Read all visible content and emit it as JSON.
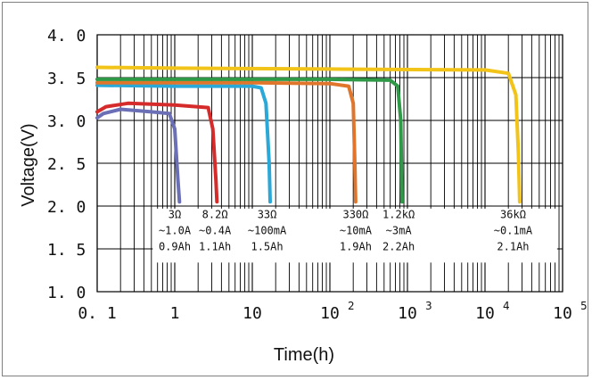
{
  "chart_data": {
    "type": "line",
    "title": "",
    "xlabel": "Time(h)",
    "ylabel": "Voltage(V)",
    "x_scale": "log",
    "xlim": [
      0.1,
      100000
    ],
    "ylim": [
      1.0,
      4.0
    ],
    "x_ticks": [
      {
        "value": 0.1,
        "base": "0. 1",
        "exp": ""
      },
      {
        "value": 1,
        "base": "1",
        "exp": ""
      },
      {
        "value": 10,
        "base": "10",
        "exp": ""
      },
      {
        "value": 100,
        "base": "10",
        "exp": "2"
      },
      {
        "value": 1000,
        "base": "10",
        "exp": "3"
      },
      {
        "value": 10000,
        "base": "10",
        "exp": "4"
      },
      {
        "value": 100000,
        "base": "10",
        "exp": "5"
      }
    ],
    "y_ticks": [
      {
        "value": 4.0,
        "label": "4. 0"
      },
      {
        "value": 3.5,
        "label": "3. 5"
      },
      {
        "value": 3.0,
        "label": "3. 0"
      },
      {
        "value": 2.5,
        "label": "2. 5"
      },
      {
        "value": 2.0,
        "label": "2. 0"
      },
      {
        "value": 1.5,
        "label": "1. 5"
      },
      {
        "value": 1.0,
        "label": "1. 0"
      }
    ],
    "series": [
      {
        "name": "3Ω",
        "current": "~1.0A",
        "capacity": "0.9Ah",
        "color": "#6b6fb5",
        "points": [
          [
            0.1,
            3.03
          ],
          [
            0.12,
            3.08
          ],
          [
            0.2,
            3.13
          ],
          [
            0.5,
            3.1
          ],
          [
            0.85,
            3.08
          ],
          [
            1.0,
            2.9
          ],
          [
            1.1,
            2.3
          ],
          [
            1.15,
            2.05
          ]
        ]
      },
      {
        "name": "8.2Ω",
        "current": "~0.4A",
        "capacity": "1.1Ah",
        "color": "#d62b2b",
        "points": [
          [
            0.1,
            3.1
          ],
          [
            0.13,
            3.16
          ],
          [
            0.25,
            3.2
          ],
          [
            1.0,
            3.18
          ],
          [
            2.7,
            3.15
          ],
          [
            3.1,
            2.9
          ],
          [
            3.4,
            2.3
          ],
          [
            3.5,
            2.05
          ]
        ]
      },
      {
        "name": "33Ω",
        "current": "~100mA",
        "capacity": "1.5Ah",
        "color": "#2aa8d8",
        "points": [
          [
            0.1,
            3.41
          ],
          [
            1,
            3.4
          ],
          [
            10,
            3.4
          ],
          [
            13,
            3.38
          ],
          [
            15,
            3.2
          ],
          [
            16.5,
            2.5
          ],
          [
            17,
            2.05
          ]
        ]
      },
      {
        "name": "330Ω",
        "current": "~10mA",
        "capacity": "1.9Ah",
        "color": "#e0762c",
        "points": [
          [
            0.1,
            3.44
          ],
          [
            10,
            3.44
          ],
          [
            100,
            3.43
          ],
          [
            175,
            3.4
          ],
          [
            200,
            3.2
          ],
          [
            210,
            2.5
          ],
          [
            215,
            2.05
          ]
        ]
      },
      {
        "name": "1.2kΩ",
        "current": "~3mA",
        "capacity": "2.2Ah",
        "color": "#2e9a48",
        "points": [
          [
            0.1,
            3.48
          ],
          [
            10,
            3.48
          ],
          [
            100,
            3.48
          ],
          [
            600,
            3.47
          ],
          [
            750,
            3.4
          ],
          [
            820,
            3.0
          ],
          [
            840,
            2.4
          ],
          [
            850,
            2.05
          ]
        ]
      },
      {
        "name": "36kΩ",
        "current": "~0.1mA",
        "capacity": "2.1Ah",
        "color": "#f2c419",
        "points": [
          [
            0.1,
            3.62
          ],
          [
            1,
            3.61
          ],
          [
            100,
            3.6
          ],
          [
            10000,
            3.59
          ],
          [
            20000,
            3.55
          ],
          [
            25000,
            3.3
          ],
          [
            27000,
            2.6
          ],
          [
            28000,
            2.05
          ]
        ]
      }
    ],
    "annotations": [
      {
        "anchor_x": 1.0,
        "lines": [
          "3Ω",
          "~1.0A",
          "0.9Ah"
        ]
      },
      {
        "anchor_x": 3.3,
        "lines": [
          "8.2Ω",
          "~0.4A",
          "1.1Ah"
        ]
      },
      {
        "anchor_x": 15.5,
        "lines": [
          "33Ω",
          "~100mA",
          "1.5Ah"
        ]
      },
      {
        "anchor_x": 215,
        "lines": [
          "330Ω",
          "~10mA",
          "1.9Ah"
        ]
      },
      {
        "anchor_x": 770,
        "lines": [
          "1.2kΩ",
          "~3mA",
          "2.2Ah"
        ]
      },
      {
        "anchor_x": 23000,
        "lines": [
          "36kΩ",
          "~0.1mA",
          "2.1Ah"
        ]
      }
    ]
  }
}
